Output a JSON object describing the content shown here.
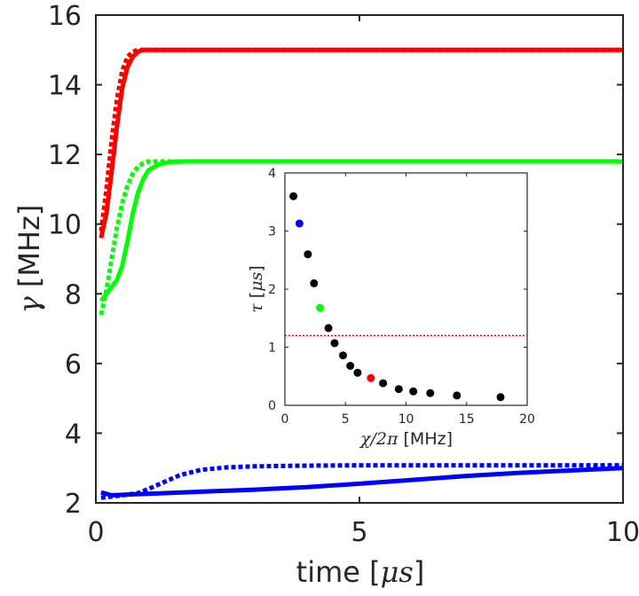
{
  "chart_data": [
    {
      "type": "line",
      "title": "",
      "xlabel": "time",
      "xlabel_unit_symbol": "μs",
      "ylabel_symbol": "γ",
      "ylabel_unit": "MHz",
      "xlim": [
        0,
        10
      ],
      "ylim": [
        2,
        16
      ],
      "xticks": [
        0,
        5,
        10
      ],
      "yticks": [
        2,
        4,
        6,
        8,
        10,
        12,
        14,
        16
      ],
      "grid": false,
      "legend": "none",
      "series": [
        {
          "color": "#ff0000",
          "style": "solid",
          "x": [
            0.1,
            0.2,
            0.3,
            0.4,
            0.5,
            0.6,
            0.7,
            0.8,
            0.9,
            1.0,
            1.5,
            3,
            5,
            7,
            10
          ],
          "y": [
            9.6,
            10.3,
            11.5,
            12.8,
            13.9,
            14.5,
            14.8,
            14.95,
            15.0,
            15.0,
            15.0,
            15.0,
            15.0,
            15.0,
            15.0
          ]
        },
        {
          "color": "#ff0000",
          "style": "dotted",
          "x": [
            0.1,
            0.2,
            0.3,
            0.4,
            0.5,
            0.6,
            0.7,
            0.8,
            0.9,
            1.0,
            1.5,
            3,
            5,
            7,
            10
          ],
          "y": [
            9.8,
            11.0,
            12.4,
            13.6,
            14.4,
            14.8,
            14.95,
            15.0,
            15.0,
            15.0,
            15.0,
            15.0,
            15.0,
            15.0,
            15.0
          ]
        },
        {
          "color": "#00ff00",
          "style": "solid",
          "x": [
            0.1,
            0.2,
            0.3,
            0.4,
            0.5,
            0.6,
            0.7,
            0.8,
            0.9,
            1.0,
            1.2,
            1.4,
            1.6,
            2.0,
            3,
            5,
            7,
            10
          ],
          "y": [
            7.8,
            8.0,
            8.2,
            8.4,
            8.8,
            9.5,
            10.3,
            10.9,
            11.3,
            11.55,
            11.72,
            11.78,
            11.8,
            11.8,
            11.8,
            11.8,
            11.8,
            11.8
          ]
        },
        {
          "color": "#00ff00",
          "style": "dotted",
          "x": [
            0.1,
            0.2,
            0.3,
            0.4,
            0.5,
            0.6,
            0.7,
            0.8,
            0.9,
            1.0,
            1.2,
            1.5,
            2.0,
            3,
            5,
            7,
            10
          ],
          "y": [
            7.4,
            8.1,
            9.0,
            9.9,
            10.6,
            11.1,
            11.45,
            11.65,
            11.75,
            11.8,
            11.8,
            11.8,
            11.8,
            11.8,
            11.8,
            11.8,
            11.8
          ]
        },
        {
          "color": "#0000ff",
          "style": "solid",
          "x": [
            0.1,
            0.3,
            0.6,
            1,
            2,
            3,
            4,
            5,
            6,
            7,
            8,
            9,
            10
          ],
          "y": [
            2.3,
            2.22,
            2.24,
            2.26,
            2.32,
            2.38,
            2.45,
            2.55,
            2.66,
            2.77,
            2.86,
            2.93,
            3.0
          ]
        },
        {
          "color": "#0000ff",
          "style": "dotted",
          "x": [
            0.1,
            0.3,
            0.5,
            0.8,
            1.0,
            1.3,
            1.6,
            2.0,
            2.5,
            3,
            4,
            5,
            6,
            7,
            8,
            9,
            10
          ],
          "y": [
            2.15,
            2.18,
            2.22,
            2.28,
            2.4,
            2.6,
            2.8,
            2.95,
            3.02,
            3.05,
            3.07,
            3.08,
            3.08,
            3.08,
            3.08,
            3.08,
            3.08
          ]
        }
      ]
    },
    {
      "type": "scatter",
      "title": "",
      "xlabel_symbol": "χ/2π",
      "xlabel_unit": "MHz",
      "ylabel_symbol": "τ",
      "ylabel_unit_symbol": "μs",
      "xlim": [
        0,
        20
      ],
      "ylim": [
        0,
        4
      ],
      "xticks": [
        0,
        5,
        10,
        15,
        20
      ],
      "yticks": [
        0,
        1,
        2,
        3,
        4
      ],
      "grid": false,
      "legend": "none",
      "threshold_line": {
        "y": 1.2,
        "color": "#ff0000",
        "style": "dotted"
      },
      "points": [
        {
          "x": 0.7,
          "y": 3.6,
          "color": "#000000"
        },
        {
          "x": 1.2,
          "y": 3.13,
          "color": "#0000ff"
        },
        {
          "x": 1.9,
          "y": 2.6,
          "color": "#000000"
        },
        {
          "x": 2.4,
          "y": 2.1,
          "color": "#000000"
        },
        {
          "x": 2.9,
          "y": 1.68,
          "color": "#00ff00"
        },
        {
          "x": 3.6,
          "y": 1.33,
          "color": "#000000"
        },
        {
          "x": 4.1,
          "y": 1.07,
          "color": "#000000"
        },
        {
          "x": 4.8,
          "y": 0.86,
          "color": "#000000"
        },
        {
          "x": 5.4,
          "y": 0.68,
          "color": "#000000"
        },
        {
          "x": 6.0,
          "y": 0.56,
          "color": "#000000"
        },
        {
          "x": 7.1,
          "y": 0.47,
          "color": "#ff0000"
        },
        {
          "x": 8.1,
          "y": 0.38,
          "color": "#000000"
        },
        {
          "x": 9.4,
          "y": 0.28,
          "color": "#000000"
        },
        {
          "x": 10.6,
          "y": 0.24,
          "color": "#000000"
        },
        {
          "x": 12.0,
          "y": 0.21,
          "color": "#000000"
        },
        {
          "x": 14.2,
          "y": 0.17,
          "color": "#000000"
        },
        {
          "x": 17.8,
          "y": 0.14,
          "color": "#000000"
        }
      ]
    }
  ]
}
